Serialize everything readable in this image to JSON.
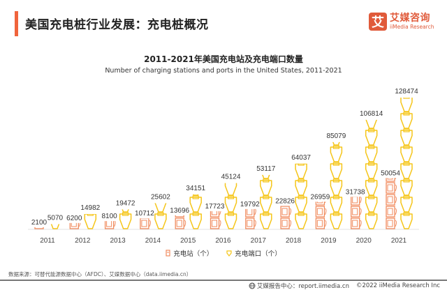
{
  "header": {
    "title": "美国充电桩行业发展：充电桩概况",
    "logo_mark": "艾",
    "logo_cn": "艾媒咨询",
    "logo_en": "iiMedia Research"
  },
  "colors": {
    "accent": "#f0643c",
    "stations": "#f08a5d",
    "ports": "#f5c518"
  },
  "chart_data": {
    "type": "bar",
    "title": "2011-2021年美国充电站及充电端口数量",
    "subtitle": "Number of charging stations and ports in the United States, 2011-2021",
    "xlabel": "",
    "ylabel": "",
    "categories": [
      "2011",
      "2012",
      "2013",
      "2014",
      "2015",
      "2016",
      "2017",
      "2018",
      "2019",
      "2020",
      "2021"
    ],
    "series": [
      {
        "name": "充电站（个）",
        "icon": "charging-station-icon",
        "values": [
          2100,
          6200,
          8100,
          10712,
          13696,
          17723,
          19792,
          22826,
          26959,
          31738,
          50054
        ]
      },
      {
        "name": "充电端口（个）",
        "icon": "plug-icon",
        "values": [
          5070,
          14982,
          19472,
          25602,
          34151,
          45124,
          53117,
          64037,
          85079,
          106814,
          128474
        ]
      }
    ],
    "ylim": [
      0,
      140000
    ],
    "grid": false,
    "legend": "bottom-center",
    "pictorial": true
  },
  "legend": {
    "stations_label": "充电站（个）",
    "ports_label": "充电端口（个）"
  },
  "footer": {
    "source": "数据来源：可替代能源数据中心（AFDC）、艾媒数据中心（data.iimedia.cn）",
    "report": "艾媒报告中心：report.iimedia.cn",
    "copyright": "©2022  iiMedia Research Inc"
  }
}
